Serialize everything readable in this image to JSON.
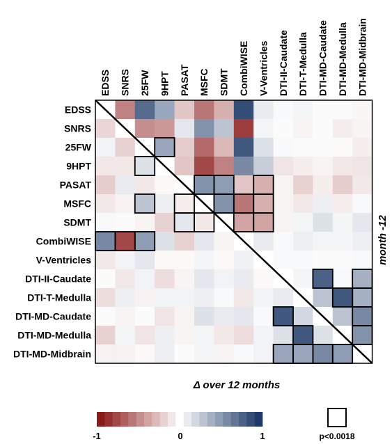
{
  "chart_data": {
    "type": "heatmap",
    "variables": [
      "EDSS",
      "SNRS",
      "25FW",
      "9HPT",
      "PASAT",
      "MSFC",
      "SDMT",
      "CombiWISE",
      "V-Ventricles",
      "DTI-II-Caudate",
      "DTI-T-Medulla",
      "DTI-MD-Caudate",
      "DTI-MD-Medulla",
      "DTI-MD-Midbrain"
    ],
    "upper_triangle_label": "month -12",
    "lower_triangle_label": "Δ over 12 months",
    "color_scale": {
      "min": -1,
      "max": 1,
      "tick_labels": [
        "-1",
        "0",
        "1"
      ],
      "negative_color": "#8b1a1a",
      "neutral_color": "#ffffff",
      "positive_color": "#1f3a68"
    },
    "significance_legend": "p<0.0018",
    "values": [
      [
        null,
        -0.55,
        0.75,
        0.45,
        -0.25,
        -0.6,
        -0.35,
        0.9,
        0.1,
        0.03,
        0.05,
        0.02,
        0.02,
        -0.04
      ],
      [
        -0.18,
        null,
        -0.5,
        -0.45,
        0.12,
        0.55,
        0.3,
        -0.85,
        0.05,
        0.02,
        -0.05,
        0.02,
        -0.08,
        -0.05
      ],
      [
        0.06,
        -0.2,
        null,
        0.45,
        -0.22,
        -0.65,
        -0.3,
        0.85,
        0.15,
        0.03,
        0.02,
        0.02,
        -0.02,
        -0.08
      ],
      [
        -0.1,
        -0.1,
        0.15,
        null,
        -0.25,
        -0.8,
        -0.55,
        0.6,
        0.25,
        -0.12,
        -0.08,
        -0.05,
        -0.1,
        -0.12
      ],
      [
        -0.22,
        0.1,
        -0.1,
        -0.03,
        null,
        0.55,
        0.5,
        -0.25,
        -0.35,
        -0.05,
        -0.2,
        -0.08,
        -0.22,
        -0.1
      ],
      [
        -0.1,
        -0.06,
        0.3,
        0.08,
        -0.08,
        null,
        0.55,
        -0.6,
        -0.35,
        -0.05,
        -0.1,
        0.08,
        -0.08,
        0.03
      ],
      [
        0.03,
        0.02,
        -0.05,
        -0.2,
        0.12,
        -0.1,
        null,
        -0.4,
        -0.4,
        -0.05,
        0.05,
        0.15,
        0.05,
        0.12
      ],
      [
        0.6,
        -0.8,
        0.5,
        0.15,
        -0.2,
        0.12,
        -0.05,
        null,
        0.1,
        0.03,
        0.08,
        0.05,
        0.05,
        0.08
      ],
      [
        -0.1,
        0.06,
        0.12,
        -0.03,
        -0.03,
        0.05,
        -0.03,
        0.07,
        null,
        0.03,
        0.03,
        0.02,
        0.02,
        0.03
      ],
      [
        -0.02,
        -0.1,
        0.06,
        -0.15,
        -0.05,
        0.12,
        0.06,
        0.1,
        -0.03,
        null,
        0.05,
        0.8,
        0.03,
        0.4
      ],
      [
        -0.15,
        0.08,
        -0.06,
        0.06,
        0.06,
        0.08,
        0.03,
        -0.1,
        0.06,
        0.1,
        null,
        0.3,
        0.85,
        0.4
      ],
      [
        0.02,
        -0.05,
        0.02,
        -0.12,
        -0.05,
        0.15,
        0.1,
        0.12,
        0.03,
        0.85,
        0.2,
        null,
        0.3,
        0.6
      ],
      [
        -0.2,
        0.05,
        -0.12,
        0.08,
        -0.05,
        0.05,
        -0.1,
        -0.15,
        0.06,
        0.15,
        0.85,
        0.15,
        null,
        0.55
      ],
      [
        -0.06,
        -0.06,
        -0.03,
        0.08,
        0.02,
        0.05,
        -0.05,
        0.03,
        0.06,
        0.45,
        0.45,
        0.6,
        0.5,
        null
      ]
    ],
    "significant_cells": [
      [
        2,
        3
      ],
      [
        3,
        2
      ],
      [
        4,
        5
      ],
      [
        4,
        6
      ],
      [
        5,
        4
      ],
      [
        5,
        6
      ],
      [
        6,
        4
      ],
      [
        6,
        5
      ],
      [
        4,
        8
      ],
      [
        5,
        7
      ],
      [
        5,
        8
      ],
      [
        6,
        7
      ],
      [
        6,
        8
      ],
      [
        5,
        2
      ],
      [
        7,
        0
      ],
      [
        7,
        1
      ],
      [
        7,
        2
      ],
      [
        9,
        11
      ],
      [
        11,
        9
      ],
      [
        9,
        13
      ],
      [
        10,
        12
      ],
      [
        12,
        10
      ],
      [
        10,
        13
      ],
      [
        11,
        13
      ],
      [
        12,
        13
      ],
      [
        13,
        9
      ],
      [
        13,
        10
      ],
      [
        13,
        11
      ],
      [
        13,
        12
      ]
    ]
  }
}
